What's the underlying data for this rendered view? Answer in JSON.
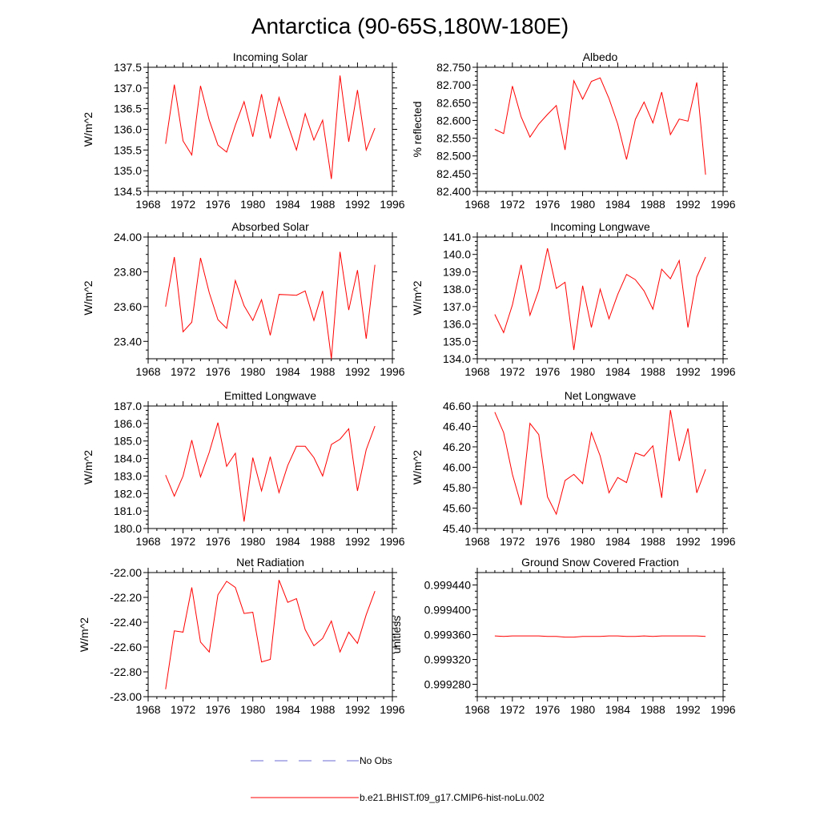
{
  "figure_title": "Antarctica (90-65S,180W-180E)",
  "colors": {
    "model": "#ff0000",
    "obs": "#6b6bd6",
    "axis": "#000000"
  },
  "legend": {
    "obs_label": "No Obs",
    "model_label": "b.e21.BHIST.f09_g17.CMIP6-hist-noLu.002"
  },
  "chart_data": [
    {
      "type": "line",
      "title": "Incoming Solar",
      "xlabel": "",
      "ylabel": "W/m^2",
      "xlim": [
        1968,
        1996
      ],
      "ylim": [
        134.5,
        137.5
      ],
      "xticks": [
        1968,
        1972,
        1976,
        1980,
        1984,
        1988,
        1992,
        1996
      ],
      "yticks": [
        134.5,
        135.0,
        135.5,
        136.0,
        136.5,
        137.0,
        137.5
      ],
      "ydecimals": 1,
      "x": [
        1970,
        1971,
        1972,
        1973,
        1974,
        1975,
        1976,
        1977,
        1978,
        1979,
        1980,
        1981,
        1982,
        1983,
        1984,
        1985,
        1986,
        1987,
        1988,
        1989,
        1990,
        1991,
        1992,
        1993,
        1994
      ],
      "series": [
        {
          "name": "b.e21.BHIST.f09_g17.CMIP6-hist-noLu.002",
          "values": [
            135.65,
            137.08,
            135.72,
            135.38,
            137.05,
            136.22,
            135.62,
            135.45,
            136.1,
            136.67,
            135.82,
            136.85,
            135.78,
            136.77,
            136.12,
            135.5,
            136.38,
            135.74,
            136.22,
            134.8,
            137.3,
            135.7,
            136.95,
            135.5,
            136.03
          ]
        }
      ]
    },
    {
      "type": "line",
      "title": "Albedo",
      "xlabel": "",
      "ylabel": "% reflected",
      "xlim": [
        1968,
        1996
      ],
      "ylim": [
        82.4,
        82.75
      ],
      "xticks": [
        1968,
        1972,
        1976,
        1980,
        1984,
        1988,
        1992,
        1996
      ],
      "yticks": [
        82.4,
        82.45,
        82.5,
        82.55,
        82.6,
        82.65,
        82.7,
        82.75
      ],
      "ydecimals": 3,
      "x": [
        1970,
        1971,
        1972,
        1973,
        1974,
        1975,
        1976,
        1977,
        1978,
        1979,
        1980,
        1981,
        1982,
        1983,
        1984,
        1985,
        1986,
        1987,
        1988,
        1989,
        1990,
        1991,
        1992,
        1993,
        1994
      ],
      "series": [
        {
          "name": "b.e21.BHIST.f09_g17.CMIP6-hist-noLu.002",
          "values": [
            82.575,
            82.563,
            82.697,
            82.61,
            82.553,
            82.59,
            82.617,
            82.642,
            82.517,
            82.712,
            82.66,
            82.71,
            82.72,
            82.662,
            82.59,
            82.49,
            82.603,
            82.652,
            82.593,
            82.68,
            82.56,
            82.604,
            82.598,
            82.707,
            82.447
          ]
        }
      ]
    },
    {
      "type": "line",
      "title": "Absorbed Solar",
      "xlabel": "",
      "ylabel": "W/m^2",
      "xlim": [
        1968,
        1996
      ],
      "ylim": [
        23.3,
        24.0
      ],
      "xticks": [
        1968,
        1972,
        1976,
        1980,
        1984,
        1988,
        1992,
        1996
      ],
      "yticks": [
        23.4,
        23.6,
        23.8,
        24.0
      ],
      "ydecimals": 2,
      "x": [
        1970,
        1971,
        1972,
        1973,
        1974,
        1975,
        1976,
        1977,
        1978,
        1979,
        1980,
        1981,
        1982,
        1983,
        1984,
        1985,
        1986,
        1987,
        1988,
        1989,
        1990,
        1991,
        1992,
        1993,
        1994
      ],
      "series": [
        {
          "name": "b.e21.BHIST.f09_g17.CMIP6-hist-noLu.002",
          "values": [
            23.6,
            23.885,
            23.455,
            23.51,
            23.88,
            23.68,
            23.525,
            23.475,
            23.75,
            23.605,
            23.52,
            23.64,
            23.435,
            23.67,
            23.668,
            23.665,
            23.69,
            23.52,
            23.69,
            23.3,
            23.915,
            23.58,
            23.81,
            23.415,
            23.84
          ]
        }
      ]
    },
    {
      "type": "line",
      "title": "Incoming Longwave",
      "xlabel": "",
      "ylabel": "W/m^2",
      "xlim": [
        1968,
        1996
      ],
      "ylim": [
        134.0,
        141.0
      ],
      "xticks": [
        1968,
        1972,
        1976,
        1980,
        1984,
        1988,
        1992,
        1996
      ],
      "yticks": [
        134.0,
        135.0,
        136.0,
        137.0,
        138.0,
        139.0,
        140.0,
        141.0
      ],
      "ydecimals": 1,
      "x": [
        1970,
        1971,
        1972,
        1973,
        1974,
        1975,
        1976,
        1977,
        1978,
        1979,
        1980,
        1981,
        1982,
        1983,
        1984,
        1985,
        1986,
        1987,
        1988,
        1989,
        1990,
        1991,
        1992,
        1993,
        1994
      ],
      "series": [
        {
          "name": "b.e21.BHIST.f09_g17.CMIP6-hist-noLu.002",
          "values": [
            136.55,
            135.5,
            137.1,
            139.4,
            136.5,
            137.95,
            140.35,
            138.05,
            138.4,
            134.5,
            138.2,
            135.8,
            138.0,
            136.3,
            137.7,
            138.85,
            138.55,
            137.9,
            136.85,
            139.15,
            138.6,
            139.65,
            135.8,
            138.7,
            139.85
          ]
        }
      ]
    },
    {
      "type": "line",
      "title": "Emitted Longwave",
      "xlabel": "",
      "ylabel": "W/m^2",
      "xlim": [
        1968,
        1996
      ],
      "ylim": [
        180.0,
        187.0
      ],
      "xticks": [
        1968,
        1972,
        1976,
        1980,
        1984,
        1988,
        1992,
        1996
      ],
      "yticks": [
        180.0,
        181.0,
        182.0,
        183.0,
        184.0,
        185.0,
        186.0,
        187.0
      ],
      "ydecimals": 1,
      "x": [
        1970,
        1971,
        1972,
        1973,
        1974,
        1975,
        1976,
        1977,
        1978,
        1979,
        1980,
        1981,
        1982,
        1983,
        1984,
        1985,
        1986,
        1987,
        1988,
        1989,
        1990,
        1991,
        1992,
        1993,
        1994
      ],
      "series": [
        {
          "name": "b.e21.BHIST.f09_g17.CMIP6-hist-noLu.002",
          "values": [
            183.05,
            181.85,
            183.0,
            185.05,
            182.95,
            184.35,
            186.05,
            183.55,
            184.3,
            180.4,
            184.05,
            182.15,
            184.1,
            182.05,
            183.6,
            184.7,
            184.7,
            184.05,
            183.0,
            184.8,
            185.1,
            185.7,
            182.15,
            184.5,
            185.85
          ]
        }
      ]
    },
    {
      "type": "line",
      "title": "Net Longwave",
      "xlabel": "",
      "ylabel": "W/m^2",
      "xlim": [
        1968,
        1996
      ],
      "ylim": [
        45.4,
        46.6
      ],
      "xticks": [
        1968,
        1972,
        1976,
        1980,
        1984,
        1988,
        1992,
        1996
      ],
      "yticks": [
        45.4,
        45.6,
        45.8,
        46.0,
        46.2,
        46.4,
        46.6
      ],
      "ydecimals": 2,
      "x": [
        1970,
        1971,
        1972,
        1973,
        1974,
        1975,
        1976,
        1977,
        1978,
        1979,
        1980,
        1981,
        1982,
        1983,
        1984,
        1985,
        1986,
        1987,
        1988,
        1989,
        1990,
        1991,
        1992,
        1993,
        1994
      ],
      "series": [
        {
          "name": "b.e21.BHIST.f09_g17.CMIP6-hist-noLu.002",
          "values": [
            46.54,
            46.34,
            45.93,
            45.63,
            46.43,
            46.32,
            45.71,
            45.54,
            45.87,
            45.93,
            45.84,
            46.34,
            46.11,
            45.75,
            45.9,
            45.85,
            46.14,
            46.11,
            46.21,
            45.7,
            46.56,
            46.06,
            46.38,
            45.75,
            45.98
          ]
        }
      ]
    },
    {
      "type": "line",
      "title": "Net Radiation",
      "xlabel": "",
      "ylabel": "W/m^2",
      "xlim": [
        1968,
        1996
      ],
      "ylim": [
        -23.0,
        -22.0
      ],
      "xticks": [
        1968,
        1972,
        1976,
        1980,
        1984,
        1988,
        1992,
        1996
      ],
      "yticks": [
        -23.0,
        -22.8,
        -22.6,
        -22.4,
        -22.2,
        -22.0
      ],
      "ydecimals": 2,
      "x": [
        1970,
        1971,
        1972,
        1973,
        1974,
        1975,
        1976,
        1977,
        1978,
        1979,
        1980,
        1981,
        1982,
        1983,
        1984,
        1985,
        1986,
        1987,
        1988,
        1989,
        1990,
        1991,
        1992,
        1993,
        1994
      ],
      "series": [
        {
          "name": "b.e21.BHIST.f09_g17.CMIP6-hist-noLu.002",
          "values": [
            -22.94,
            -22.47,
            -22.48,
            -22.12,
            -22.56,
            -22.64,
            -22.18,
            -22.07,
            -22.12,
            -22.33,
            -22.32,
            -22.72,
            -22.7,
            -22.06,
            -22.24,
            -22.21,
            -22.46,
            -22.59,
            -22.53,
            -22.39,
            -22.64,
            -22.48,
            -22.57,
            -22.34,
            -22.15
          ]
        }
      ]
    },
    {
      "type": "line",
      "title": "Ground Snow Covered Fraction",
      "xlabel": "",
      "ylabel": "unitless",
      "xlim": [
        1968,
        1996
      ],
      "ylim": [
        0.99926,
        0.99946
      ],
      "xticks": [
        1968,
        1972,
        1976,
        1980,
        1984,
        1988,
        1992,
        1996
      ],
      "yticks": [
        0.99928,
        0.99932,
        0.99936,
        0.9994,
        0.99944
      ],
      "ydecimals": 6,
      "x": [
        1970,
        1971,
        1972,
        1973,
        1974,
        1975,
        1976,
        1977,
        1978,
        1979,
        1980,
        1981,
        1982,
        1983,
        1984,
        1985,
        1986,
        1987,
        1988,
        1989,
        1990,
        1991,
        1992,
        1993,
        1994
      ],
      "series": [
        {
          "name": "b.e21.BHIST.f09_g17.CMIP6-hist-noLu.002",
          "values": [
            0.999358,
            0.999357,
            0.999358,
            0.999358,
            0.999358,
            0.999358,
            0.999357,
            0.999357,
            0.999356,
            0.999356,
            0.999357,
            0.999357,
            0.999357,
            0.999358,
            0.999358,
            0.999357,
            0.999357,
            0.999358,
            0.999357,
            0.999358,
            0.999358,
            0.999358,
            0.999358,
            0.999358,
            0.999357
          ]
        }
      ]
    }
  ]
}
